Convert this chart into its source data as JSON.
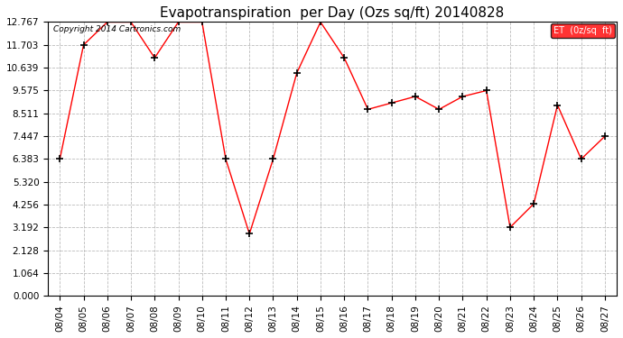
{
  "title": "Evapotranspiration  per Day (Ozs sq/ft) 20140828",
  "copyright": "Copyright 2014 Cartronics.com",
  "legend_label": "ET  (0z/sq  ft)",
  "dates": [
    "08/04",
    "08/05",
    "08/06",
    "08/07",
    "08/08",
    "08/09",
    "08/10",
    "08/11",
    "08/12",
    "08/13",
    "08/14",
    "08/15",
    "08/16",
    "08/17",
    "08/18",
    "08/19",
    "08/20",
    "08/21",
    "08/22",
    "08/23",
    "08/24",
    "08/25",
    "08/26",
    "08/27"
  ],
  "values": [
    6.383,
    11.703,
    12.767,
    12.767,
    11.1,
    12.767,
    12.767,
    6.383,
    2.9,
    6.383,
    10.4,
    12.767,
    11.1,
    8.7,
    9.0,
    9.3,
    8.7,
    9.3,
    9.575,
    3.2,
    4.3,
    8.9,
    6.383,
    7.447
  ],
  "yticks": [
    0.0,
    1.064,
    2.128,
    3.192,
    4.256,
    5.32,
    6.383,
    7.447,
    8.511,
    9.575,
    10.639,
    11.703,
    12.767
  ],
  "ylim": [
    0.0,
    12.767
  ],
  "line_color": "red",
  "marker": "+",
  "marker_color": "black",
  "background_color": "white",
  "grid_color": "#bbbbbb",
  "title_fontsize": 11,
  "tick_fontsize": 7.5,
  "copyright_fontsize": 6.5,
  "legend_bg": "red",
  "legend_text_color": "white"
}
